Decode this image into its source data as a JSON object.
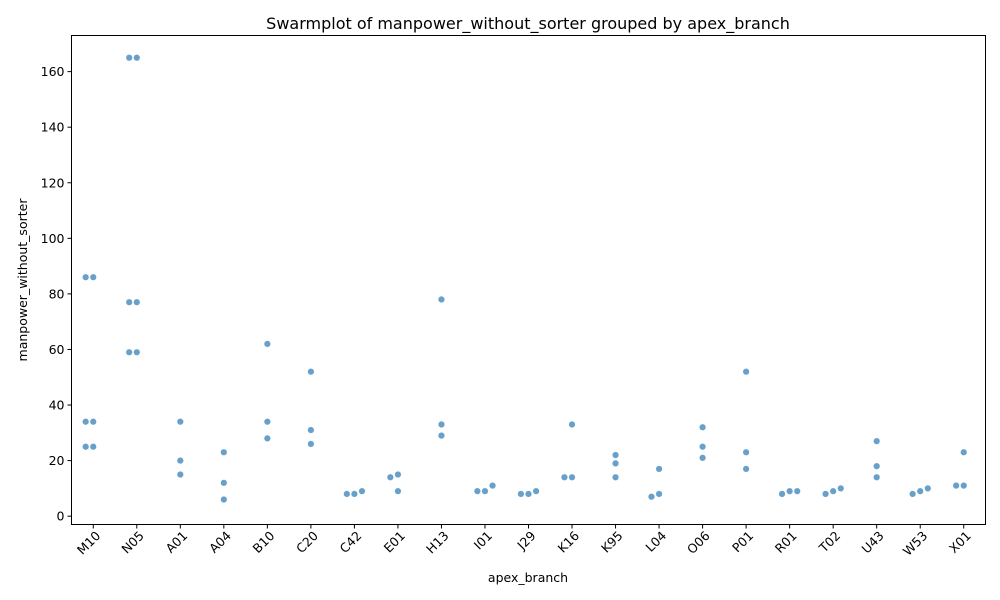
{
  "chart_data": {
    "type": "scatter",
    "title": "Swarmplot of manpower_without_sorter grouped by apex_branch",
    "xlabel": "apex_branch",
    "ylabel": "manpower_without_sorter",
    "categories": [
      "M10",
      "N05",
      "A01",
      "A04",
      "B10",
      "C20",
      "C42",
      "E01",
      "H13",
      "I01",
      "J29",
      "K16",
      "K95",
      "L04",
      "O06",
      "P01",
      "R01",
      "T02",
      "U43",
      "W53",
      "X01"
    ],
    "ylim": [
      -3,
      173
    ],
    "yticks": [
      0,
      20,
      40,
      60,
      80,
      100,
      120,
      140,
      160
    ],
    "grid": false,
    "point_color": "#5f9dc8",
    "groups": [
      {
        "category": "M10",
        "values": [
          86,
          86,
          34,
          34,
          25,
          25
        ]
      },
      {
        "category": "N05",
        "values": [
          165,
          165,
          77,
          77,
          59,
          59
        ]
      },
      {
        "category": "A01",
        "values": [
          34,
          20,
          15
        ]
      },
      {
        "category": "A04",
        "values": [
          23,
          12,
          6
        ]
      },
      {
        "category": "B10",
        "values": [
          62,
          34,
          28
        ]
      },
      {
        "category": "C20",
        "values": [
          52,
          31,
          26
        ]
      },
      {
        "category": "C42",
        "values": [
          8,
          8,
          9
        ]
      },
      {
        "category": "E01",
        "values": [
          15,
          14,
          9
        ]
      },
      {
        "category": "H13",
        "values": [
          78,
          33,
          29
        ]
      },
      {
        "category": "I01",
        "values": [
          9,
          9,
          11
        ]
      },
      {
        "category": "J29",
        "values": [
          8,
          8,
          9
        ]
      },
      {
        "category": "K16",
        "values": [
          33,
          14,
          14
        ]
      },
      {
        "category": "K95",
        "values": [
          22,
          19,
          14
        ]
      },
      {
        "category": "L04",
        "values": [
          17,
          8,
          7
        ]
      },
      {
        "category": "O06",
        "values": [
          32,
          25,
          21
        ]
      },
      {
        "category": "P01",
        "values": [
          52,
          23,
          17
        ]
      },
      {
        "category": "R01",
        "values": [
          9,
          8,
          9
        ]
      },
      {
        "category": "T02",
        "values": [
          9,
          8,
          10
        ]
      },
      {
        "category": "U43",
        "values": [
          27,
          18,
          14
        ]
      },
      {
        "category": "W53",
        "values": [
          9,
          8,
          10
        ]
      },
      {
        "category": "X01",
        "values": [
          11,
          11,
          23
        ]
      }
    ]
  }
}
